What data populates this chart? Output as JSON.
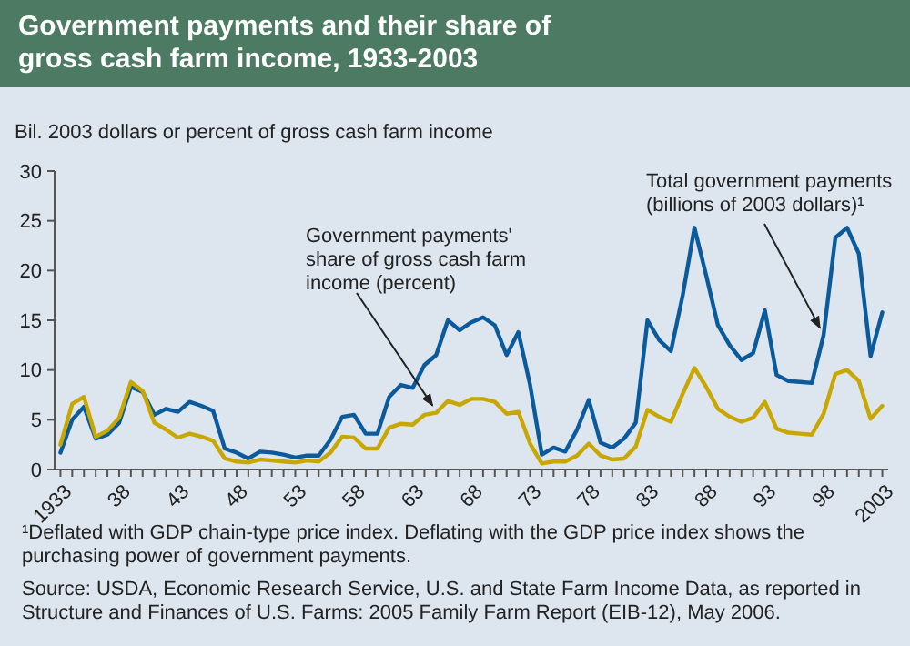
{
  "chart_data": {
    "type": "line",
    "title": "Government payments and their share of gross cash farm income, 1933-2003",
    "ylabel": "Bil. 2003 dollars or percent of gross cash farm income",
    "x": [
      1933,
      1934,
      1935,
      1936,
      1937,
      1938,
      1939,
      1940,
      1941,
      1942,
      1943,
      1944,
      1945,
      1946,
      1947,
      1948,
      1949,
      1950,
      1951,
      1952,
      1953,
      1954,
      1955,
      1956,
      1957,
      1958,
      1959,
      1960,
      1961,
      1962,
      1963,
      1964,
      1965,
      1966,
      1967,
      1968,
      1969,
      1970,
      1971,
      1972,
      1973,
      1974,
      1975,
      1976,
      1977,
      1978,
      1979,
      1980,
      1981,
      1982,
      1983,
      1984,
      1985,
      1986,
      1987,
      1988,
      1989,
      1990,
      1991,
      1992,
      1993,
      1994,
      1995,
      1996,
      1997,
      1998,
      1999,
      2000,
      2001,
      2002,
      2003
    ],
    "series": [
      {
        "name": "Total government payments (billions of 2003 dollars)¹",
        "color": "#0a5a9c",
        "values": [
          1.7,
          5,
          6.3,
          3.1,
          3.5,
          4.7,
          8.3,
          7.8,
          5.5,
          6.1,
          5.8,
          6.8,
          6.4,
          5.9,
          2.1,
          1.7,
          1.1,
          1.8,
          1.7,
          1.5,
          1.2,
          1.4,
          1.4,
          3,
          5.3,
          5.5,
          3.6,
          3.6,
          7.3,
          8.5,
          8.2,
          10.5,
          11.5,
          15,
          14,
          14.8,
          15.3,
          14.5,
          11.5,
          13.8,
          8.5,
          1.5,
          2.2,
          1.8,
          4,
          7,
          2.7,
          2.2,
          3.1,
          4.7,
          15,
          13,
          11.9,
          17.5,
          24.3,
          19.5,
          14.5,
          12.5,
          11,
          11.7,
          16,
          9.5,
          8.9,
          8.8,
          8.7,
          13.5,
          23.3,
          24.3,
          21.7,
          11.4,
          15.8
        ]
      },
      {
        "name": "Government payments' share of gross cash farm income (percent)",
        "color": "#c8a800",
        "values": [
          2.5,
          6.6,
          7.3,
          3.3,
          3.9,
          5.2,
          8.8,
          7.9,
          4.7,
          4,
          3.2,
          3.6,
          3.3,
          2.9,
          1.1,
          0.8,
          0.7,
          1,
          0.9,
          0.8,
          0.7,
          0.9,
          0.8,
          1.7,
          3.3,
          3.2,
          2.1,
          2.1,
          4.2,
          4.6,
          4.5,
          5.5,
          5.7,
          6.9,
          6.5,
          7.1,
          7.1,
          6.8,
          5.6,
          5.8,
          2.6,
          0.6,
          0.8,
          0.8,
          1.4,
          2.6,
          1.4,
          1,
          1.1,
          2.3,
          6,
          5.3,
          4.8,
          7.6,
          10.2,
          8.3,
          6.1,
          5.3,
          4.8,
          5.2,
          6.8,
          4.1,
          3.7,
          3.6,
          3.5,
          5.6,
          9.6,
          10,
          8.9,
          5.1,
          6.4
        ]
      }
    ],
    "xlim": [
      1932.5,
      2003.5
    ],
    "xticks": [
      {
        "value": 1933,
        "label": "1933"
      },
      {
        "value": 1938,
        "label": "38"
      },
      {
        "value": 1943,
        "label": "43"
      },
      {
        "value": 1948,
        "label": "48"
      },
      {
        "value": 1953,
        "label": "53"
      },
      {
        "value": 1958,
        "label": "58"
      },
      {
        "value": 1963,
        "label": "63"
      },
      {
        "value": 1968,
        "label": "68"
      },
      {
        "value": 1973,
        "label": "73"
      },
      {
        "value": 1978,
        "label": "78"
      },
      {
        "value": 1983,
        "label": "83"
      },
      {
        "value": 1988,
        "label": "88"
      },
      {
        "value": 1993,
        "label": "93"
      },
      {
        "value": 1998,
        "label": "98"
      },
      {
        "value": 2003,
        "label": "2003"
      }
    ],
    "ylim": [
      0,
      30
    ],
    "yticks": [
      0,
      5,
      10,
      15,
      20,
      25,
      30
    ],
    "grid": false,
    "legend": false,
    "line_style": "solid",
    "annotations": [
      "¹Deflated with GDP chain-type price index. Deflating with the GDP price index shows the purchasing power of government payments.",
      "Source: USDA, Economic Research Service, U.S. and State Farm Income Data, as reported in Structure and Finances of U.S. Farms: 2005 Family Farm Report (EIB-12), May 2006."
    ]
  }
}
